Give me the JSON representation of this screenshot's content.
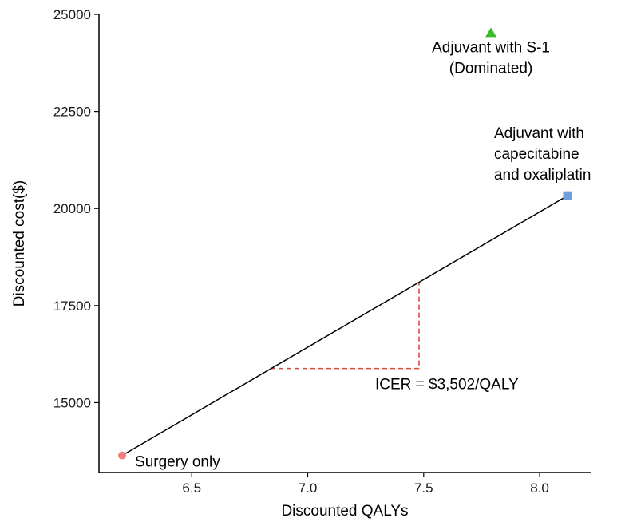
{
  "chart_data": {
    "type": "scatter",
    "title": "",
    "xlabel": "Discounted QALYs",
    "ylabel": "Discounted cost($)",
    "xlim": [
      6.1,
      8.22
    ],
    "ylim": [
      13200,
      25000
    ],
    "x_ticks": [
      6.5,
      7.0,
      7.5,
      8.0
    ],
    "x_tick_labels": [
      "6.5",
      "7.0",
      "7.5",
      "8.0"
    ],
    "y_ticks": [
      15000,
      17500,
      20000,
      22500,
      25000
    ],
    "y_tick_labels": [
      "15000",
      "17500",
      "20000",
      "22500",
      "25000"
    ],
    "grid": false,
    "points": [
      {
        "label_lines": [
          "Surgery only"
        ],
        "x": 6.2,
        "y": 13640,
        "color": "#f08080",
        "marker": "circle"
      },
      {
        "label_lines": [
          "Adjuvant with",
          "capecitabine",
          "and oxaliplatin"
        ],
        "x": 8.12,
        "y": 20330,
        "color": "#6f9fd8",
        "marker": "square"
      },
      {
        "label_lines": [
          "Adjuvant with S-1",
          "(Dominated)"
        ],
        "x": 7.79,
        "y": 24520,
        "color": "#3cb832",
        "marker": "triangle"
      }
    ],
    "frontier": {
      "from": [
        6.2,
        13640
      ],
      "to": [
        8.12,
        20330
      ]
    },
    "icer_guide": {
      "x_start": 6.84,
      "x_end": 7.48,
      "y_low": 15880,
      "y_high": 18110,
      "color": "#d94a3d"
    },
    "annotation": "ICER = $3,502/QALY"
  }
}
